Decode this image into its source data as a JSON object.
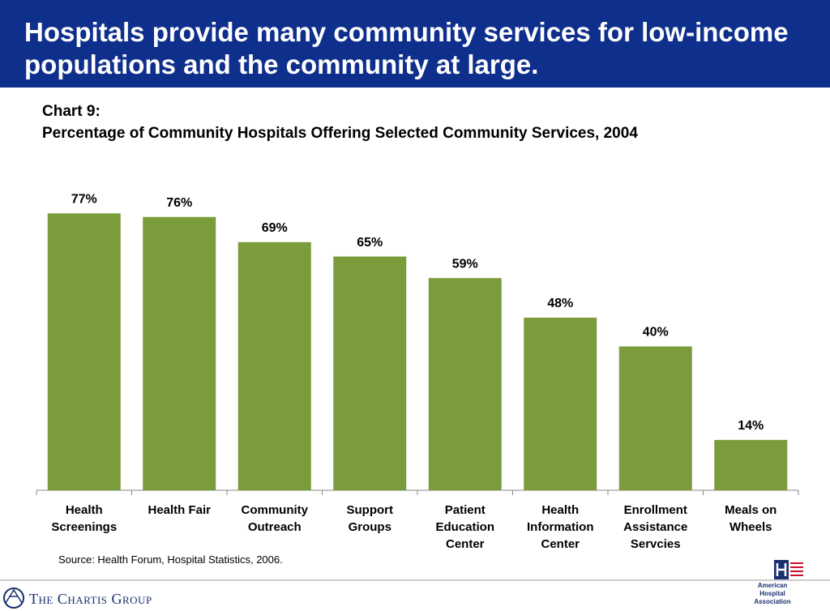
{
  "header": {
    "title": "Hospitals provide many community services for low-income populations and the community at large."
  },
  "chart_data": {
    "type": "bar",
    "title": "Chart 9:",
    "subtitle": "Percentage of Community Hospitals Offering Selected Community Services, 2004",
    "categories": [
      "Health Screenings",
      "Health Fair",
      "Community Outreach",
      "Support Groups",
      "Patient Education Center",
      "Health Information Center",
      "Enrollment Assistance Servcies",
      "Meals on Wheels"
    ],
    "values": [
      77,
      76,
      69,
      65,
      59,
      48,
      40,
      14
    ],
    "value_labels": [
      "77%",
      "76%",
      "69%",
      "65%",
      "59%",
      "48%",
      "40%",
      "14%"
    ],
    "color": "#7a9c3b",
    "ylim": [
      0,
      80
    ],
    "source": "Source:  Health Forum, Hospital Statistics, 2006."
  },
  "footer": {
    "left_logo": "The Chartis Group",
    "right_logo": "American Hospital Association"
  }
}
